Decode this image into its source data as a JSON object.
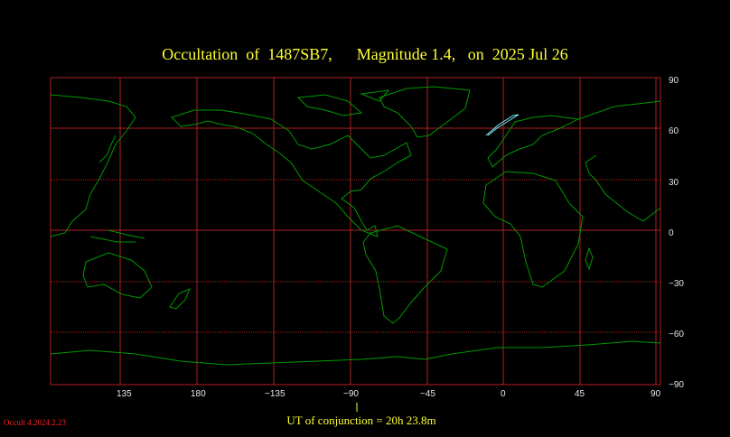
{
  "title": "Occultation  of  1487SB7,      Magnitude 1.4,   on  2025 Jul 26",
  "lon_ticks": [
    "135",
    "180",
    "−135",
    "−90",
    "−45",
    "0",
    "45",
    "90"
  ],
  "lat_ticks": [
    "90",
    "60",
    "30",
    "0",
    "−30",
    "−60",
    "−90"
  ],
  "ut_of_conjunction": "UT of conjunction = 20h 23.8m",
  "version": "Occult 4.2024.2.23",
  "colors": {
    "background": "#000000",
    "coastline": "#009900",
    "grid": "#b02020",
    "path": "#80f0ff",
    "title": "#ffff33",
    "version": "#ff2020"
  }
}
